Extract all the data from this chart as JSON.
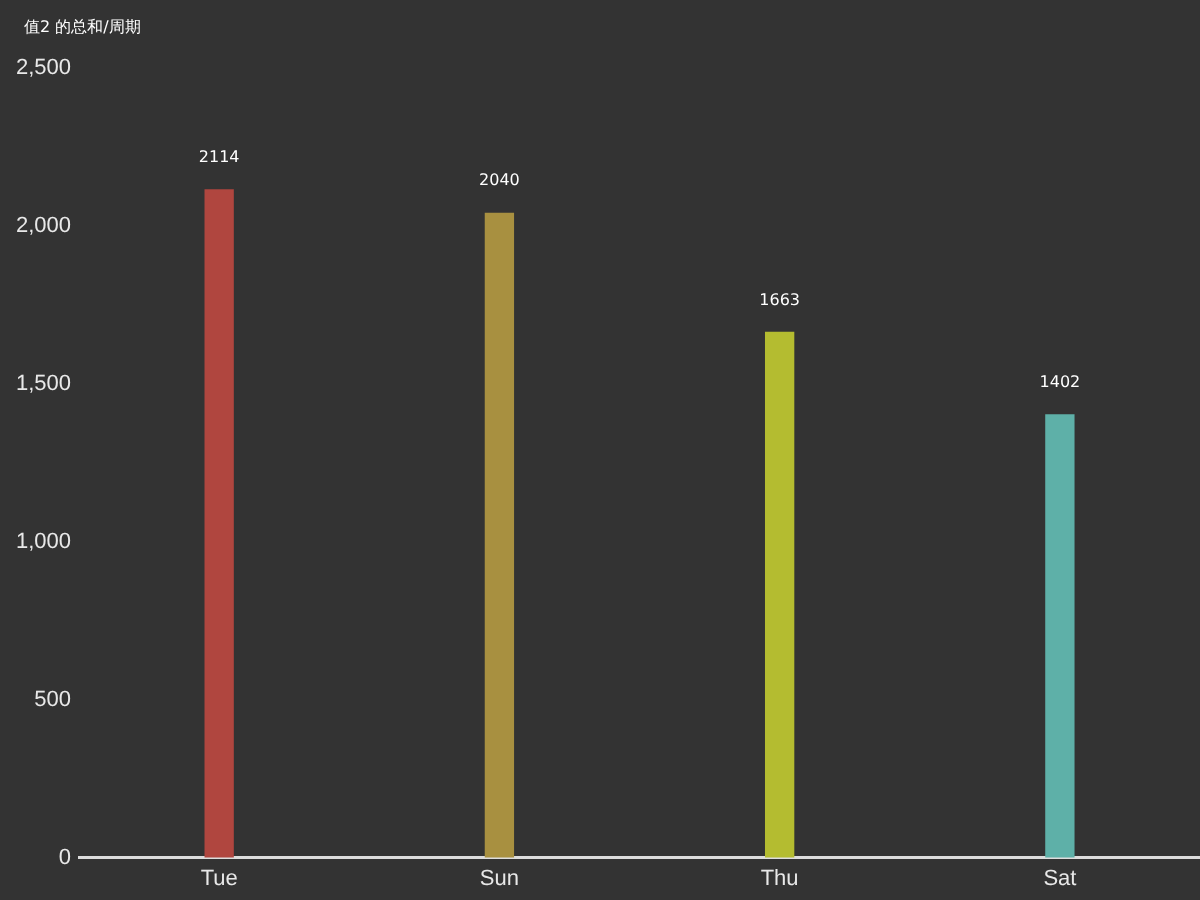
{
  "chart_data": {
    "type": "bar",
    "ylabel": "值2 的总和/周期",
    "categories": [
      "Tue",
      "Sun",
      "Thu",
      "Sat"
    ],
    "values": [
      2114,
      2040,
      1663,
      1402
    ],
    "colors": [
      "#b0463f",
      "#a89040",
      "#b4bc30",
      "#5eb0a8"
    ],
    "ylim": [
      0,
      2500
    ],
    "yticks": [
      0,
      {
        "value": 500,
        "label": "500"
      },
      {
        "value": 1000,
        "label": "1,000"
      },
      {
        "value": 1500,
        "label": "1,500"
      },
      {
        "value": 2000,
        "label": "2,000"
      },
      {
        "value": 2500,
        "label": "2,500"
      }
    ],
    "data_labels": true,
    "grid": false,
    "legend": false
  }
}
